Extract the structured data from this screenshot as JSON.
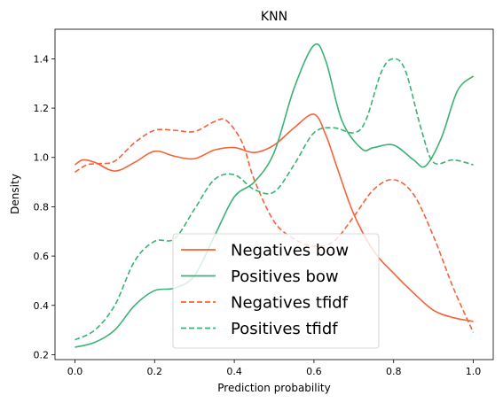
{
  "chart_data": {
    "type": "line",
    "title": "KNN",
    "xlabel": "Prediction probability",
    "ylabel": "Density",
    "xlim": [
      -0.05,
      1.05
    ],
    "ylim": [
      0.18,
      1.52
    ],
    "xticks": [
      0.0,
      0.2,
      0.4,
      0.6,
      0.8,
      1.0
    ],
    "xtick_labels": [
      "0.0",
      "0.2",
      "0.4",
      "0.6",
      "0.8",
      "1.0"
    ],
    "yticks": [
      0.2,
      0.4,
      0.6,
      0.8,
      1.0,
      1.2,
      1.4
    ],
    "ytick_labels": [
      "0.2",
      "0.4",
      "0.6",
      "0.8",
      "1.0",
      "1.2",
      "1.4"
    ],
    "grid": false,
    "legend_position": "lower-center",
    "series": [
      {
        "name": "Negatives bow",
        "color": "#f4623a",
        "dash": "solid",
        "x": [
          0.0,
          0.02,
          0.05,
          0.1,
          0.15,
          0.2,
          0.25,
          0.3,
          0.35,
          0.4,
          0.45,
          0.5,
          0.55,
          0.6,
          0.63,
          0.66,
          0.7,
          0.75,
          0.8,
          0.85,
          0.9,
          0.95,
          1.0
        ],
        "y": [
          0.97,
          0.99,
          0.98,
          0.945,
          0.98,
          1.025,
          1.005,
          0.995,
          1.03,
          1.04,
          1.02,
          1.05,
          1.12,
          1.175,
          1.09,
          0.95,
          0.77,
          0.62,
          0.53,
          0.45,
          0.38,
          0.35,
          0.335
        ]
      },
      {
        "name": "Positives bow",
        "color": "#3bb273",
        "dash": "solid",
        "x": [
          0.0,
          0.05,
          0.1,
          0.15,
          0.2,
          0.25,
          0.3,
          0.35,
          0.4,
          0.45,
          0.5,
          0.55,
          0.6,
          0.63,
          0.67,
          0.72,
          0.75,
          0.8,
          0.85,
          0.88,
          0.92,
          0.96,
          1.0
        ],
        "y": [
          0.23,
          0.25,
          0.3,
          0.4,
          0.46,
          0.47,
          0.52,
          0.68,
          0.84,
          0.9,
          1.02,
          1.28,
          1.455,
          1.39,
          1.15,
          1.035,
          1.04,
          1.05,
          0.99,
          0.965,
          1.08,
          1.27,
          1.33
        ]
      },
      {
        "name": "Negatives tfidf",
        "color": "#f4623a",
        "dash": "dashed",
        "x": [
          0.0,
          0.03,
          0.06,
          0.1,
          0.15,
          0.2,
          0.25,
          0.3,
          0.35,
          0.38,
          0.42,
          0.45,
          0.5,
          0.55,
          0.6,
          0.65,
          0.7,
          0.75,
          0.8,
          0.85,
          0.9,
          0.95,
          1.0
        ],
        "y": [
          0.94,
          0.97,
          0.975,
          0.985,
          1.06,
          1.11,
          1.11,
          1.105,
          1.145,
          1.15,
          1.06,
          0.91,
          0.74,
          0.67,
          0.64,
          0.66,
          0.76,
          0.87,
          0.91,
          0.85,
          0.68,
          0.47,
          0.29
        ]
      },
      {
        "name": "Positives tfidf",
        "color": "#3bb273",
        "dash": "dashed",
        "x": [
          0.0,
          0.05,
          0.1,
          0.15,
          0.2,
          0.25,
          0.3,
          0.35,
          0.4,
          0.45,
          0.5,
          0.55,
          0.6,
          0.65,
          0.7,
          0.73,
          0.77,
          0.8,
          0.83,
          0.87,
          0.9,
          0.95,
          1.0
        ],
        "y": [
          0.26,
          0.3,
          0.4,
          0.58,
          0.66,
          0.67,
          0.79,
          0.91,
          0.93,
          0.87,
          0.86,
          0.97,
          1.1,
          1.12,
          1.1,
          1.15,
          1.35,
          1.4,
          1.35,
          1.11,
          0.98,
          0.99,
          0.97
        ]
      }
    ]
  }
}
